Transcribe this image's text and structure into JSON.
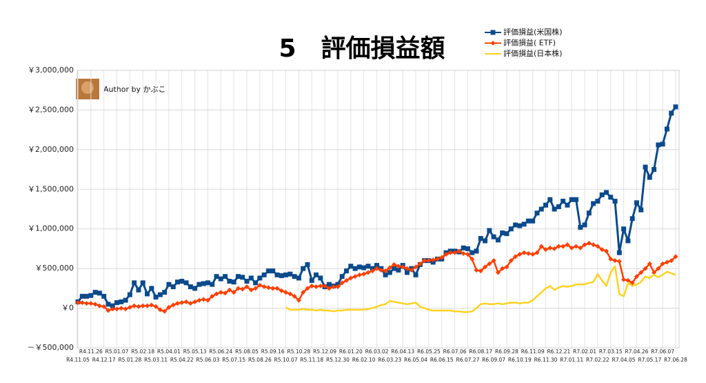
{
  "chart_data": {
    "type": "line",
    "title": "5　評価損益額",
    "annotation": "Author by かぶこ",
    "categories": [
      "R4.11.05",
      null,
      null,
      "R4.11.26",
      null,
      null,
      "R4.12.17",
      null,
      null,
      "R5.01.07",
      null,
      null,
      "R5.01.28",
      null,
      null,
      "R5.02.18",
      null,
      null,
      "R5.03.11",
      null,
      null,
      "R5.04.01",
      null,
      null,
      "R5.04.22",
      null,
      null,
      "R5.05.13",
      null,
      null,
      "R5.06.03",
      null,
      null,
      "R5.06.24",
      null,
      null,
      "R5.07.15",
      null,
      null,
      "R5.08.05",
      null,
      null,
      "R5.08.26",
      null,
      null,
      "R5.09.16",
      null,
      null,
      "R5.10.07",
      null,
      null,
      "R5.10.28",
      null,
      null,
      "R5.11.18",
      null,
      null,
      "R5.12.09",
      null,
      null,
      "R5.12.30",
      null,
      null,
      "R6.01.20",
      null,
      null,
      "R6.02.10",
      null,
      null,
      "R6.03.02",
      null,
      null,
      "R6.03.23",
      null,
      null,
      "R6.04.13",
      null,
      null,
      "R6.05.04",
      null,
      null,
      "R6.05.25",
      null,
      null,
      "R6.06.15",
      null,
      null,
      "R6.07.06",
      null,
      null,
      "R6.07.27",
      null,
      null,
      "R6.08.17",
      null,
      null,
      "R6.09.07",
      null,
      null,
      "R6.09.28",
      null,
      null,
      "R6.10.19",
      null,
      null,
      "R6.11.09",
      null,
      null,
      "R6.11.30",
      null,
      null,
      "R6.12.21",
      null,
      null,
      "R7.01.11",
      null,
      null,
      "R7.02.01",
      null,
      null,
      "R7.02.22",
      null,
      null,
      "R7.03.15",
      null,
      null,
      "R7.04.05",
      null,
      null,
      "R7.04.26",
      null,
      null,
      "R7.05.17",
      null,
      null,
      "R7.06.07",
      null,
      null,
      "R7.06.28"
    ],
    "series": [
      {
        "name": "評価損益(米国株)",
        "color": "#0b4a8c",
        "marker": "square",
        "values": [
          80000,
          150000,
          150000,
          160000,
          200000,
          190000,
          150000,
          50000,
          30000,
          70000,
          80000,
          100000,
          170000,
          320000,
          230000,
          320000,
          180000,
          250000,
          140000,
          170000,
          200000,
          300000,
          270000,
          330000,
          340000,
          320000,
          270000,
          250000,
          300000,
          310000,
          320000,
          300000,
          400000,
          370000,
          400000,
          340000,
          330000,
          400000,
          390000,
          340000,
          380000,
          320000,
          380000,
          420000,
          470000,
          470000,
          420000,
          410000,
          420000,
          430000,
          400000,
          380000,
          500000,
          550000,
          350000,
          420000,
          380000,
          270000,
          300000,
          280000,
          300000,
          400000,
          470000,
          530000,
          500000,
          520000,
          510000,
          530000,
          500000,
          540000,
          500000,
          420000,
          450000,
          500000,
          480000,
          540000,
          450000,
          500000,
          420000,
          550000,
          600000,
          600000,
          580000,
          620000,
          620000,
          700000,
          720000,
          720000,
          710000,
          760000,
          750000,
          700000,
          720000,
          880000,
          850000,
          980000,
          900000,
          860000,
          950000,
          940000,
          1000000,
          1050000,
          1040000,
          1060000,
          1100000,
          1100000,
          1200000,
          1250000,
          1300000,
          1370000,
          1250000,
          1280000,
          1350000,
          1300000,
          1370000,
          1370000,
          1020000,
          1050000,
          1200000,
          1320000,
          1350000,
          1430000,
          1460000,
          1400000,
          1350000,
          700000,
          1000000,
          850000,
          1130000,
          1330000,
          1240000,
          1780000,
          1650000,
          1750000,
          2060000,
          2070000,
          2260000,
          2460000,
          2540000
        ]
      },
      {
        "name": "評価損益( ETF)",
        "color": "#ff3f00",
        "marker": "diamond",
        "values": [
          70000,
          70000,
          60000,
          60000,
          50000,
          30000,
          20000,
          -30000,
          -10000,
          -10000,
          0,
          -10000,
          10000,
          30000,
          20000,
          30000,
          30000,
          40000,
          20000,
          -20000,
          -40000,
          10000,
          40000,
          60000,
          70000,
          80000,
          60000,
          80000,
          100000,
          110000,
          100000,
          150000,
          180000,
          200000,
          190000,
          230000,
          200000,
          250000,
          240000,
          270000,
          230000,
          250000,
          290000,
          270000,
          260000,
          250000,
          250000,
          220000,
          200000,
          180000,
          150000,
          100000,
          200000,
          250000,
          280000,
          270000,
          280000,
          280000,
          250000,
          270000,
          270000,
          320000,
          350000,
          380000,
          400000,
          420000,
          430000,
          450000,
          470000,
          500000,
          480000,
          470000,
          510000,
          550000,
          530000,
          520000,
          500000,
          480000,
          520000,
          560000,
          600000,
          600000,
          610000,
          620000,
          640000,
          680000,
          700000,
          700000,
          720000,
          690000,
          680000,
          620000,
          480000,
          470000,
          520000,
          560000,
          600000,
          450000,
          500000,
          520000,
          600000,
          650000,
          680000,
          700000,
          690000,
          680000,
          700000,
          780000,
          740000,
          760000,
          750000,
          780000,
          780000,
          800000,
          760000,
          780000,
          760000,
          800000,
          820000,
          800000,
          780000,
          740000,
          720000,
          620000,
          600000,
          590000,
          360000,
          350000,
          320000,
          400000,
          450000,
          500000,
          560000,
          450000,
          500000,
          560000,
          580000,
          600000,
          650000
        ]
      },
      {
        "name": "評価損益(日本株)",
        "color": "#ffd21f",
        "marker": "none",
        "values": [
          null,
          null,
          null,
          null,
          null,
          null,
          null,
          null,
          null,
          null,
          null,
          null,
          null,
          null,
          null,
          null,
          null,
          null,
          null,
          null,
          null,
          null,
          null,
          null,
          null,
          null,
          null,
          null,
          null,
          null,
          null,
          null,
          null,
          null,
          null,
          null,
          null,
          null,
          null,
          null,
          null,
          null,
          null,
          null,
          null,
          null,
          null,
          null,
          10000,
          -20000,
          -20000,
          -20000,
          -10000,
          -20000,
          -20000,
          -30000,
          -20000,
          -30000,
          -30000,
          -40000,
          -30000,
          -30000,
          -20000,
          -20000,
          -20000,
          -20000,
          -20000,
          -10000,
          0,
          20000,
          40000,
          50000,
          90000,
          80000,
          70000,
          60000,
          50000,
          60000,
          70000,
          20000,
          0,
          -20000,
          -30000,
          -30000,
          -30000,
          -30000,
          -30000,
          -40000,
          -40000,
          -50000,
          -50000,
          -40000,
          0,
          50000,
          60000,
          50000,
          50000,
          60000,
          50000,
          60000,
          70000,
          70000,
          60000,
          70000,
          70000,
          100000,
          150000,
          200000,
          250000,
          280000,
          230000,
          260000,
          280000,
          270000,
          280000,
          300000,
          300000,
          300000,
          320000,
          330000,
          430000,
          350000,
          280000,
          450000,
          530000,
          180000,
          150000,
          320000,
          280000,
          300000,
          330000,
          400000,
          380000,
          420000,
          390000,
          420000,
          460000,
          440000,
          420000
        ]
      }
    ],
    "ylim": [
      -500000,
      3000000
    ],
    "yticks": [
      {
        "value": -500000,
        "label": "－￥500,000"
      },
      {
        "value": 0,
        "label": "￥0"
      },
      {
        "value": 500000,
        "label": "￥500,000"
      },
      {
        "value": 1000000,
        "label": "￥1,000,000"
      },
      {
        "value": 1500000,
        "label": "￥1,500,000"
      },
      {
        "value": 2000000,
        "label": "￥2,000,000"
      },
      {
        "value": 2500000,
        "label": "￥2,500,000"
      },
      {
        "value": 3000000,
        "label": "￥3,000,000"
      }
    ],
    "grid": true,
    "legend": "top-right"
  }
}
